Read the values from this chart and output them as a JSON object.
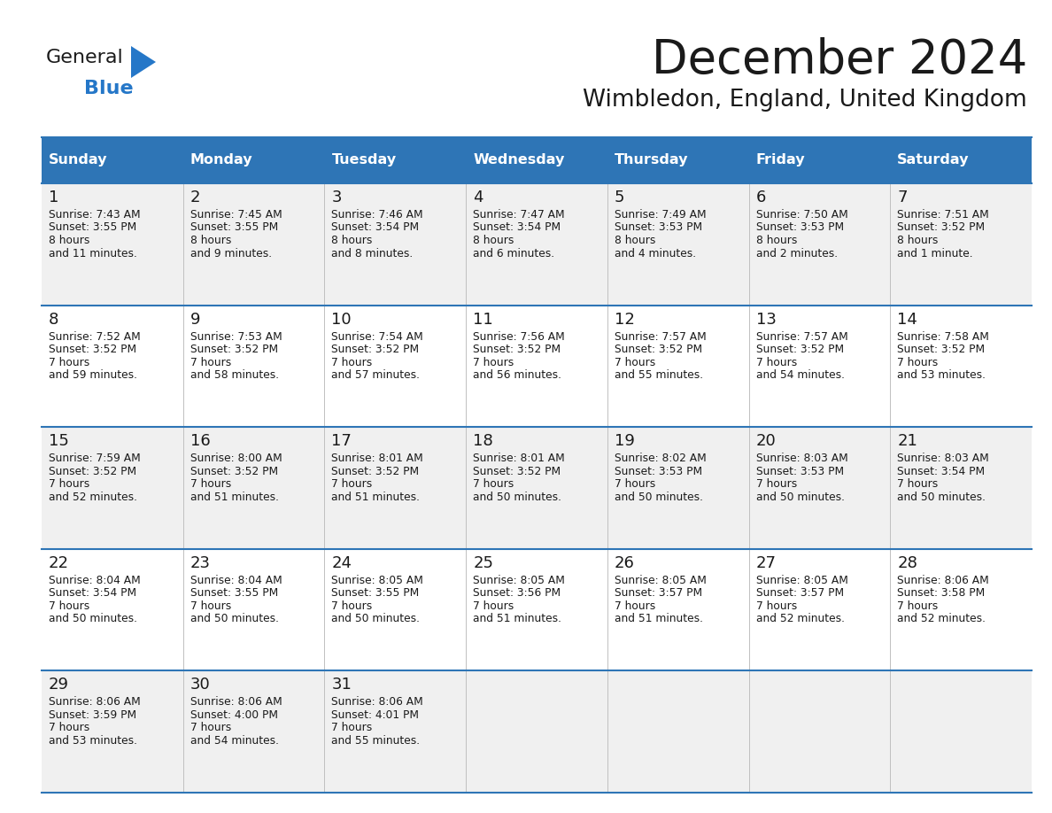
{
  "title": "December 2024",
  "subtitle": "Wimbledon, England, United Kingdom",
  "header_bg": "#2E75B6",
  "header_text": "#FFFFFF",
  "row_bg_odd": "#F0F0F0",
  "row_bg_even": "#FFFFFF",
  "grid_line_color": "#2E75B6",
  "day_names": [
    "Sunday",
    "Monday",
    "Tuesday",
    "Wednesday",
    "Thursday",
    "Friday",
    "Saturday"
  ],
  "weeks": [
    [
      {
        "day": 1,
        "sunrise": "7:43 AM",
        "sunset": "3:55 PM",
        "daylight": "8 hours\nand 11 minutes."
      },
      {
        "day": 2,
        "sunrise": "7:45 AM",
        "sunset": "3:55 PM",
        "daylight": "8 hours\nand 9 minutes."
      },
      {
        "day": 3,
        "sunrise": "7:46 AM",
        "sunset": "3:54 PM",
        "daylight": "8 hours\nand 8 minutes."
      },
      {
        "day": 4,
        "sunrise": "7:47 AM",
        "sunset": "3:54 PM",
        "daylight": "8 hours\nand 6 minutes."
      },
      {
        "day": 5,
        "sunrise": "7:49 AM",
        "sunset": "3:53 PM",
        "daylight": "8 hours\nand 4 minutes."
      },
      {
        "day": 6,
        "sunrise": "7:50 AM",
        "sunset": "3:53 PM",
        "daylight": "8 hours\nand 2 minutes."
      },
      {
        "day": 7,
        "sunrise": "7:51 AM",
        "sunset": "3:52 PM",
        "daylight": "8 hours\nand 1 minute."
      }
    ],
    [
      {
        "day": 8,
        "sunrise": "7:52 AM",
        "sunset": "3:52 PM",
        "daylight": "7 hours\nand 59 minutes."
      },
      {
        "day": 9,
        "sunrise": "7:53 AM",
        "sunset": "3:52 PM",
        "daylight": "7 hours\nand 58 minutes."
      },
      {
        "day": 10,
        "sunrise": "7:54 AM",
        "sunset": "3:52 PM",
        "daylight": "7 hours\nand 57 minutes."
      },
      {
        "day": 11,
        "sunrise": "7:56 AM",
        "sunset": "3:52 PM",
        "daylight": "7 hours\nand 56 minutes."
      },
      {
        "day": 12,
        "sunrise": "7:57 AM",
        "sunset": "3:52 PM",
        "daylight": "7 hours\nand 55 minutes."
      },
      {
        "day": 13,
        "sunrise": "7:57 AM",
        "sunset": "3:52 PM",
        "daylight": "7 hours\nand 54 minutes."
      },
      {
        "day": 14,
        "sunrise": "7:58 AM",
        "sunset": "3:52 PM",
        "daylight": "7 hours\nand 53 minutes."
      }
    ],
    [
      {
        "day": 15,
        "sunrise": "7:59 AM",
        "sunset": "3:52 PM",
        "daylight": "7 hours\nand 52 minutes."
      },
      {
        "day": 16,
        "sunrise": "8:00 AM",
        "sunset": "3:52 PM",
        "daylight": "7 hours\nand 51 minutes."
      },
      {
        "day": 17,
        "sunrise": "8:01 AM",
        "sunset": "3:52 PM",
        "daylight": "7 hours\nand 51 minutes."
      },
      {
        "day": 18,
        "sunrise": "8:01 AM",
        "sunset": "3:52 PM",
        "daylight": "7 hours\nand 50 minutes."
      },
      {
        "day": 19,
        "sunrise": "8:02 AM",
        "sunset": "3:53 PM",
        "daylight": "7 hours\nand 50 minutes."
      },
      {
        "day": 20,
        "sunrise": "8:03 AM",
        "sunset": "3:53 PM",
        "daylight": "7 hours\nand 50 minutes."
      },
      {
        "day": 21,
        "sunrise": "8:03 AM",
        "sunset": "3:54 PM",
        "daylight": "7 hours\nand 50 minutes."
      }
    ],
    [
      {
        "day": 22,
        "sunrise": "8:04 AM",
        "sunset": "3:54 PM",
        "daylight": "7 hours\nand 50 minutes."
      },
      {
        "day": 23,
        "sunrise": "8:04 AM",
        "sunset": "3:55 PM",
        "daylight": "7 hours\nand 50 minutes."
      },
      {
        "day": 24,
        "sunrise": "8:05 AM",
        "sunset": "3:55 PM",
        "daylight": "7 hours\nand 50 minutes."
      },
      {
        "day": 25,
        "sunrise": "8:05 AM",
        "sunset": "3:56 PM",
        "daylight": "7 hours\nand 51 minutes."
      },
      {
        "day": 26,
        "sunrise": "8:05 AM",
        "sunset": "3:57 PM",
        "daylight": "7 hours\nand 51 minutes."
      },
      {
        "day": 27,
        "sunrise": "8:05 AM",
        "sunset": "3:57 PM",
        "daylight": "7 hours\nand 52 minutes."
      },
      {
        "day": 28,
        "sunrise": "8:06 AM",
        "sunset": "3:58 PM",
        "daylight": "7 hours\nand 52 minutes."
      }
    ],
    [
      {
        "day": 29,
        "sunrise": "8:06 AM",
        "sunset": "3:59 PM",
        "daylight": "7 hours\nand 53 minutes."
      },
      {
        "day": 30,
        "sunrise": "8:06 AM",
        "sunset": "4:00 PM",
        "daylight": "7 hours\nand 54 minutes."
      },
      {
        "day": 31,
        "sunrise": "8:06 AM",
        "sunset": "4:01 PM",
        "daylight": "7 hours\nand 55 minutes."
      },
      null,
      null,
      null,
      null
    ]
  ],
  "logo_color_general": "#1a1a1a",
  "logo_color_blue": "#2577C8",
  "logo_triangle_color": "#2577C8"
}
